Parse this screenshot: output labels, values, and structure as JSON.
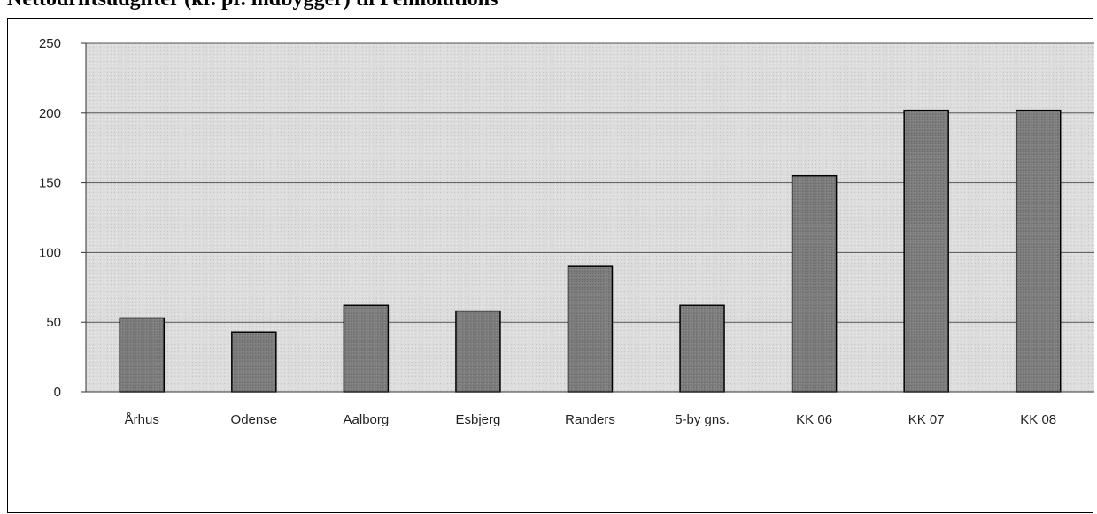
{
  "chart_data": {
    "type": "bar",
    "title": "Nettodriftsudgifter (kr. pr. indbygger) til Pennolutions",
    "categories": [
      "Århus",
      "Odense",
      "Aalborg",
      "Esbjerg",
      "Randers",
      "5-by gns.",
      "KK 06",
      "KK 07",
      "KK 08"
    ],
    "values": [
      53,
      43,
      62,
      58,
      90,
      62,
      155,
      202,
      202
    ],
    "ylim": [
      0,
      250
    ],
    "yticks": [
      0,
      50,
      100,
      150,
      200,
      250
    ],
    "grid": true,
    "colors": {
      "bar": "#7a7a7a",
      "plot_bg": "#d9d9d9",
      "grid": "#555555"
    }
  }
}
